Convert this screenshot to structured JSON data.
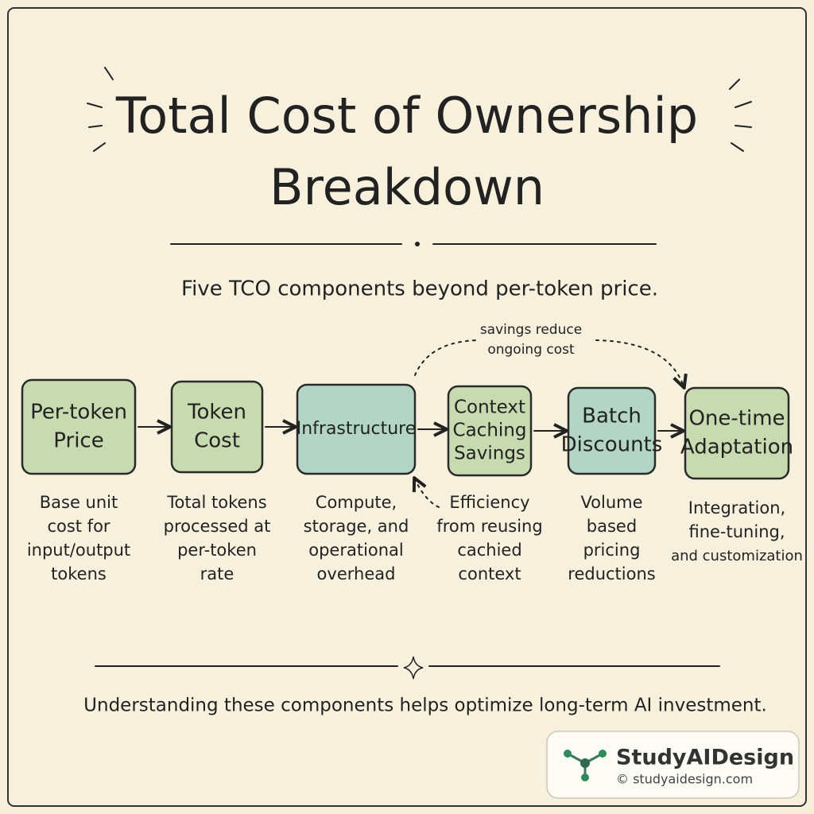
{
  "header": {
    "title_lines": [
      "Total Cost of Ownership",
      "Breakdown"
    ],
    "subtitle": "Five TCO components beyond per-token price."
  },
  "annotation": {
    "lines": [
      "savings reduce",
      "ongoing cost"
    ]
  },
  "nodes": [
    {
      "label": [
        "Per-token",
        "Price"
      ],
      "description": [
        "Base unit",
        "cost for",
        "input/output",
        "tokens"
      ],
      "color": "#c8dab0"
    },
    {
      "label": [
        "Token",
        "Cost"
      ],
      "description": [
        "Total tokens",
        "processed at",
        "per-token",
        "rate"
      ],
      "color": "#c8dab0"
    },
    {
      "label": [
        "Infrastructure"
      ],
      "description": [
        "Compute,",
        "storage, and",
        "operational",
        "overhead"
      ],
      "color": "#b2d5c6"
    },
    {
      "label": [
        "Context",
        "Caching",
        "Savings"
      ],
      "description": [
        "Efficiency",
        "from reusing",
        "cachied",
        "context"
      ],
      "color": "#c8dab0"
    },
    {
      "label": [
        "Batch",
        "Discounts"
      ],
      "description": [
        "Volume",
        "based",
        "pricing",
        "reductions"
      ],
      "color": "#b2d5c6"
    },
    {
      "label": [
        "One-time",
        "Adaptation"
      ],
      "description": [
        "Integration,",
        "fine-tuning,",
        "and customization"
      ],
      "color": "#c8dab0"
    }
  ],
  "footer": "Understanding these components helps optimize long-term AI investment.",
  "brand": {
    "name": "StudyAIDesign",
    "url": "© studyaidesign.com"
  }
}
